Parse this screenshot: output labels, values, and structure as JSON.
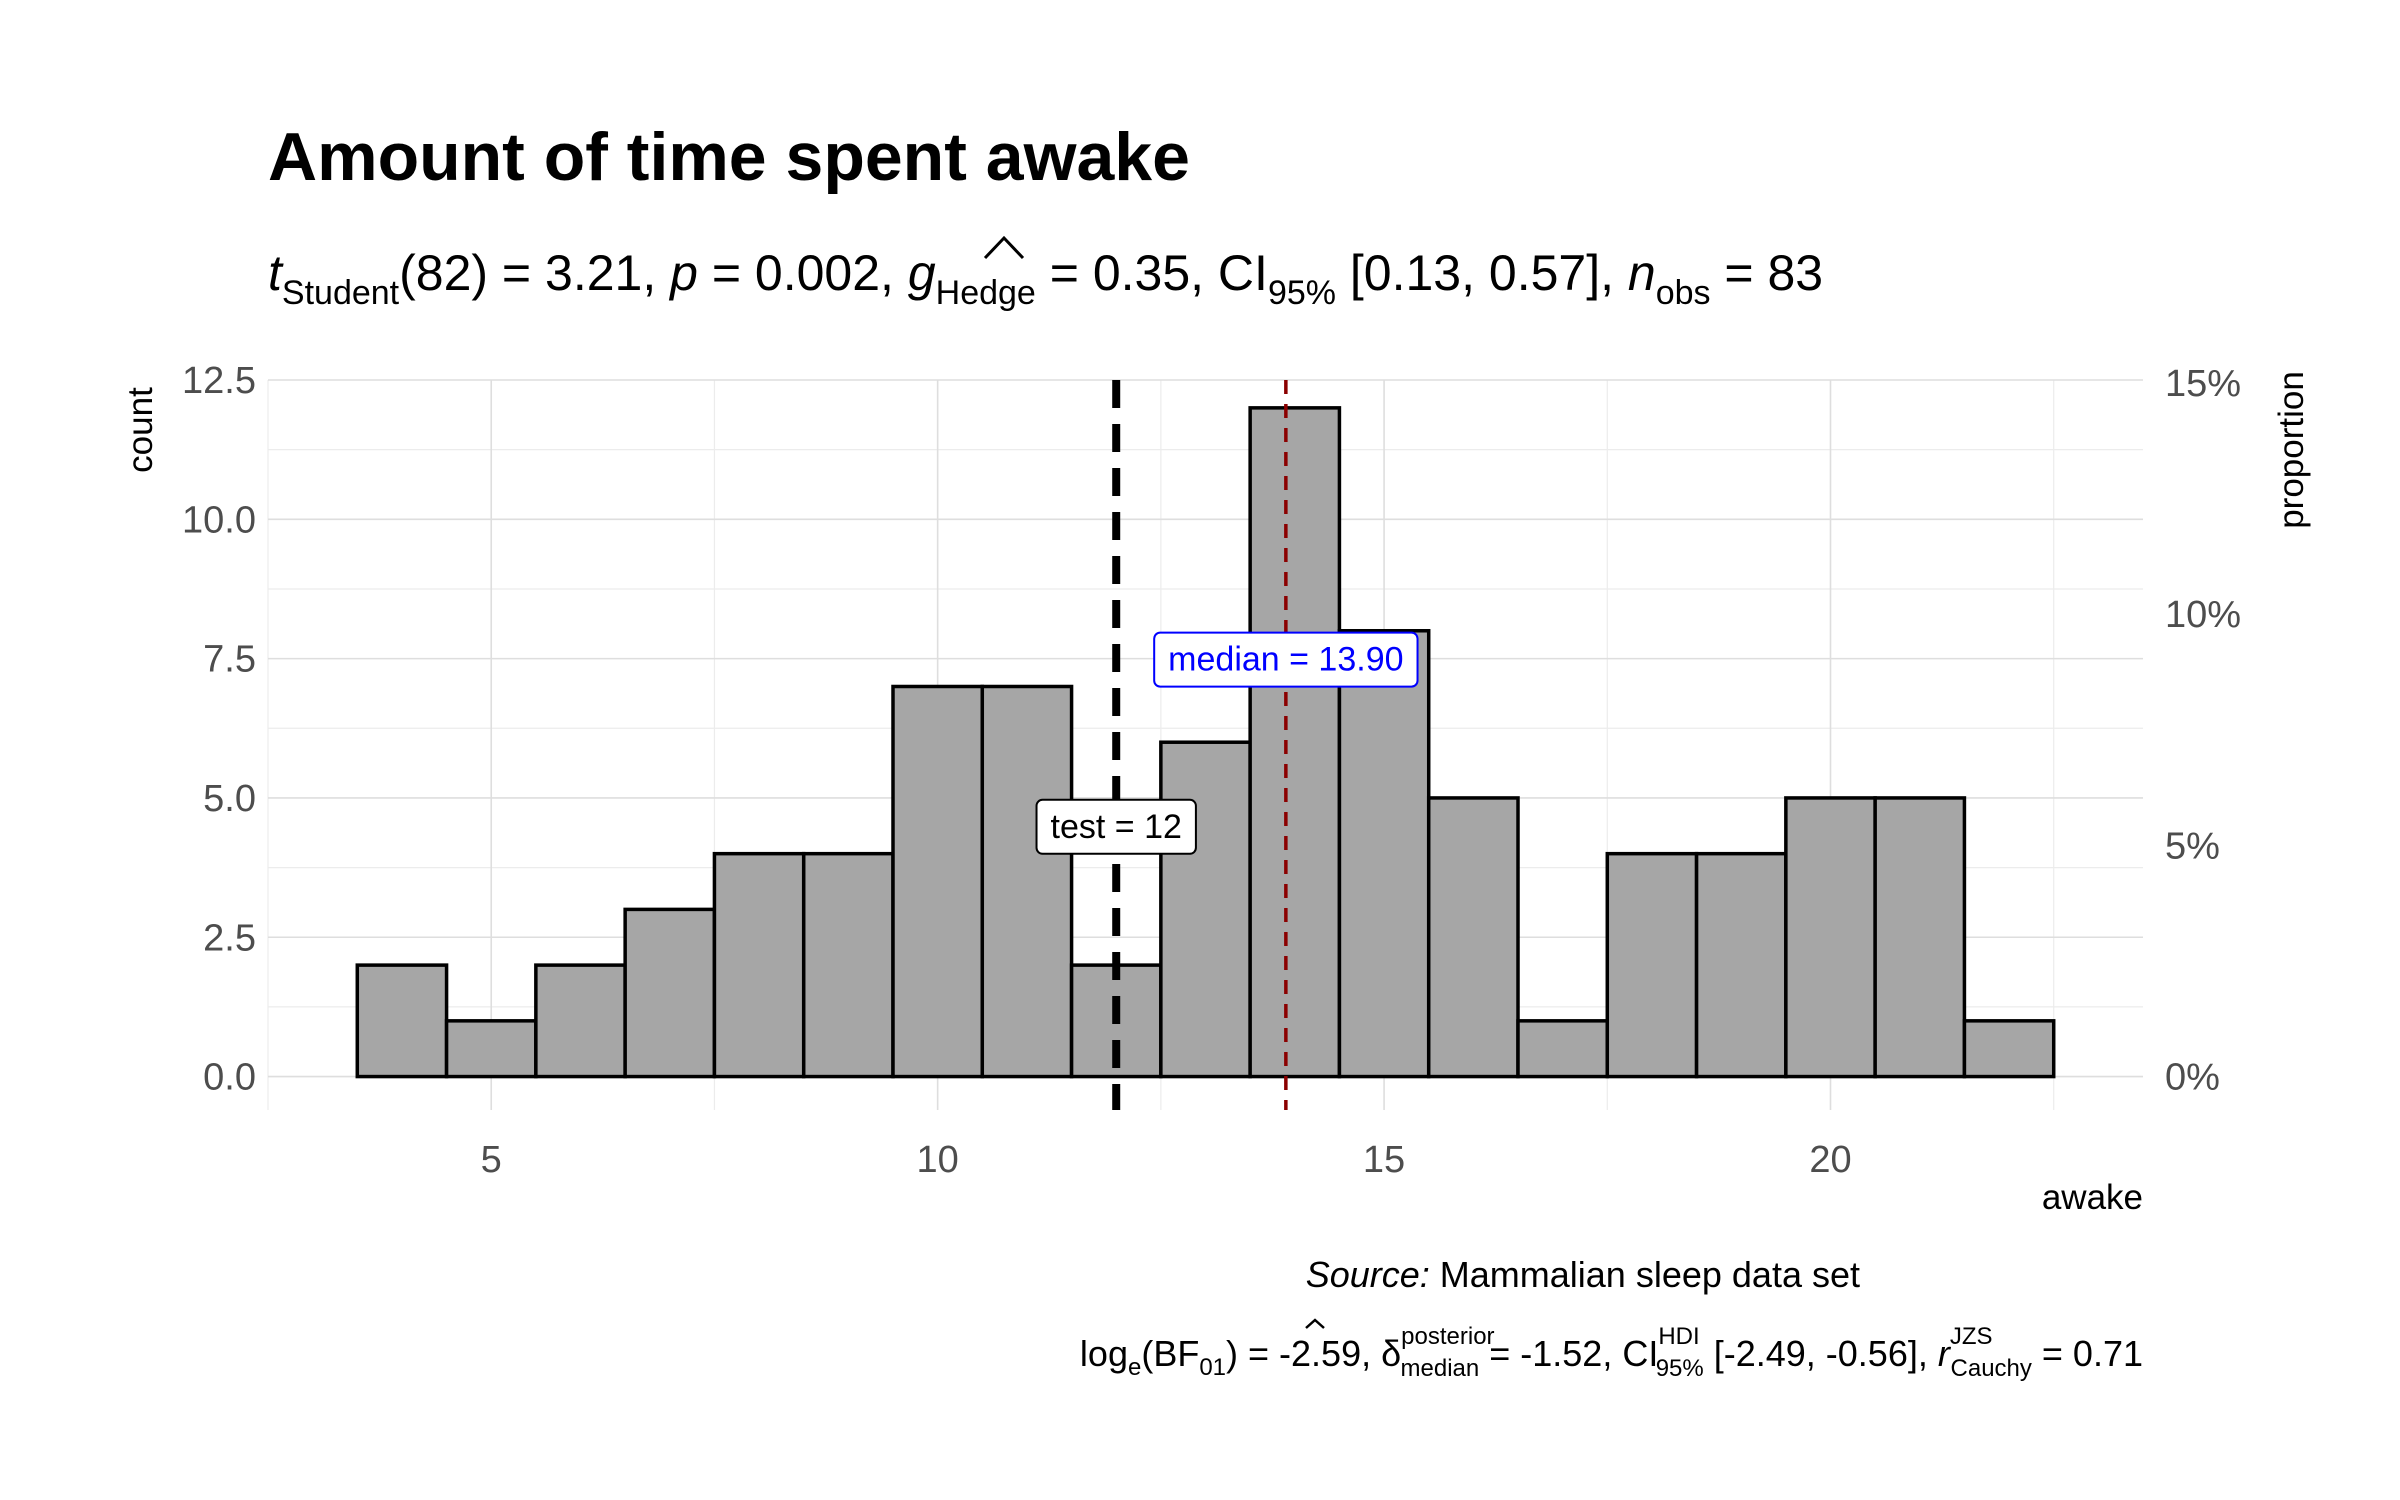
{
  "chart_data": {
    "type": "bar",
    "title": "Amount of time spent awake",
    "subtitle": {
      "t_symbol": "t",
      "t_sub": "Student",
      "df": "(82) = 3.21, ",
      "p_symbol": "p",
      "p_value": " = 0.002, ",
      "g_symbol": "g",
      "g_sub": "Hedge",
      "g_value": " = 0.35, CI",
      "ci_sub": "95%",
      "ci_value": " [0.13, 0.57], ",
      "n_symbol": "n",
      "n_sub": "obs",
      "n_value": " = 83"
    },
    "xlabel": "awake",
    "ylabel": "count",
    "y2label": "proportion",
    "xlim": [
      2.5,
      23.5
    ],
    "ylim": [
      -0.6,
      12.5
    ],
    "x_ticks": [
      5,
      10,
      15,
      20
    ],
    "x_tick_labels": [
      "5",
      "10",
      "15",
      "20"
    ],
    "y_ticks": [
      0,
      2.5,
      5,
      7.5,
      10,
      12.5
    ],
    "y_tick_labels": [
      "0.0",
      "2.5",
      "5.0",
      "7.5",
      "10.0",
      "12.5"
    ],
    "y2_tick_labels": [
      "0%",
      "5%",
      "10%",
      "15%"
    ],
    "y2_ticks_proportion": [
      0,
      0.05,
      0.1,
      0.15
    ],
    "total_n": 83,
    "bins": [
      {
        "x0": 3.5,
        "x1": 4.5,
        "count": 2
      },
      {
        "x0": 4.5,
        "x1": 5.5,
        "count": 1
      },
      {
        "x0": 5.5,
        "x1": 6.5,
        "count": 2
      },
      {
        "x0": 6.5,
        "x1": 7.5,
        "count": 3
      },
      {
        "x0": 7.5,
        "x1": 8.5,
        "count": 4
      },
      {
        "x0": 8.5,
        "x1": 9.5,
        "count": 4
      },
      {
        "x0": 9.5,
        "x1": 10.5,
        "count": 7
      },
      {
        "x0": 10.5,
        "x1": 11.5,
        "count": 7
      },
      {
        "x0": 11.5,
        "x1": 12.5,
        "count": 2
      },
      {
        "x0": 12.5,
        "x1": 13.5,
        "count": 6
      },
      {
        "x0": 13.5,
        "x1": 14.5,
        "count": 12
      },
      {
        "x0": 14.5,
        "x1": 15.5,
        "count": 8
      },
      {
        "x0": 15.5,
        "x1": 16.5,
        "count": 5
      },
      {
        "x0": 16.5,
        "x1": 17.5,
        "count": 1
      },
      {
        "x0": 17.5,
        "x1": 18.5,
        "count": 4
      },
      {
        "x0": 18.5,
        "x1": 19.5,
        "count": 4
      },
      {
        "x0": 19.5,
        "x1": 20.5,
        "count": 5
      },
      {
        "x0": 20.5,
        "x1": 21.5,
        "count": 5
      },
      {
        "x0": 21.5,
        "x1": 22.5,
        "count": 1
      }
    ],
    "test_value": 12,
    "test_label": "test = 12",
    "test_label_y": 4.5,
    "median_value": 13.9,
    "median_label": "median = 13.90",
    "median_label_y": 7.5,
    "bar_color": "#a6a6a6",
    "median_color": "#8b0000",
    "median_label_color": "#0000ff",
    "test_color": "#000000",
    "grid": true,
    "caption": {
      "source_italic": "Source:",
      "source_text": " Mammalian sleep data set",
      "bf_prefix": "log",
      "bf_sub_e": "e",
      "bf_mid": "(BF",
      "bf_sub_01": "01",
      "bf_value": ") = -2.59, ",
      "delta_symbol": "δ",
      "delta_sup": "posterior",
      "delta_sub": "median",
      "delta_value": " = -1.52, CI",
      "ci_sup": "HDI",
      "ci_sub": "95%",
      "ci_value": " [-2.49, -0.56], ",
      "r_symbol": "r",
      "r_sup": "JZS",
      "r_sub": "Cauchy",
      "r_value": " = 0.71"
    }
  }
}
